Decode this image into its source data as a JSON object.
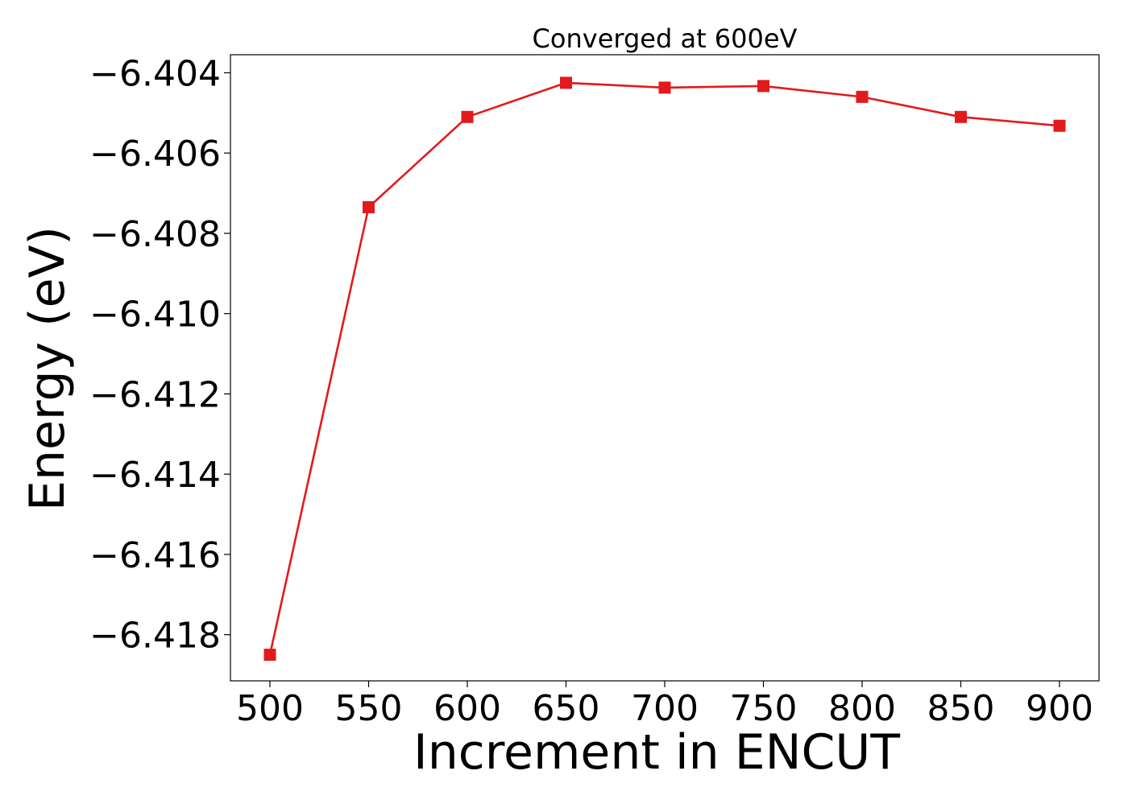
{
  "chart_data": {
    "type": "line",
    "title": "Converged at 600eV",
    "xlabel": "Increment in ENCUT",
    "ylabel": "Energy (eV)",
    "x": [
      500,
      550,
      600,
      650,
      700,
      750,
      800,
      850,
      900
    ],
    "series": [
      {
        "values": [
          -6.4185,
          -6.40735,
          -6.4051,
          -6.40425,
          -6.40437,
          -6.40433,
          -6.4046,
          -6.4051,
          -6.40532
        ],
        "color": "#e31a1c",
        "marker": "square"
      }
    ],
    "xticks": [
      500,
      550,
      600,
      650,
      700,
      750,
      800,
      850,
      900
    ],
    "xtick_labels": [
      "500",
      "550",
      "600",
      "650",
      "700",
      "750",
      "800",
      "850",
      "900"
    ],
    "yticks": [
      -6.404,
      -6.406,
      -6.408,
      -6.41,
      -6.412,
      -6.414,
      -6.416,
      -6.418
    ],
    "ytick_labels": [
      "−6.404",
      "−6.406",
      "−6.408",
      "−6.410",
      "−6.412",
      "−6.414",
      "−6.416",
      "−6.418"
    ],
    "xlim": [
      480,
      920
    ],
    "ylim": [
      -6.41915,
      -6.40355
    ],
    "grid": false,
    "legend": false
  }
}
